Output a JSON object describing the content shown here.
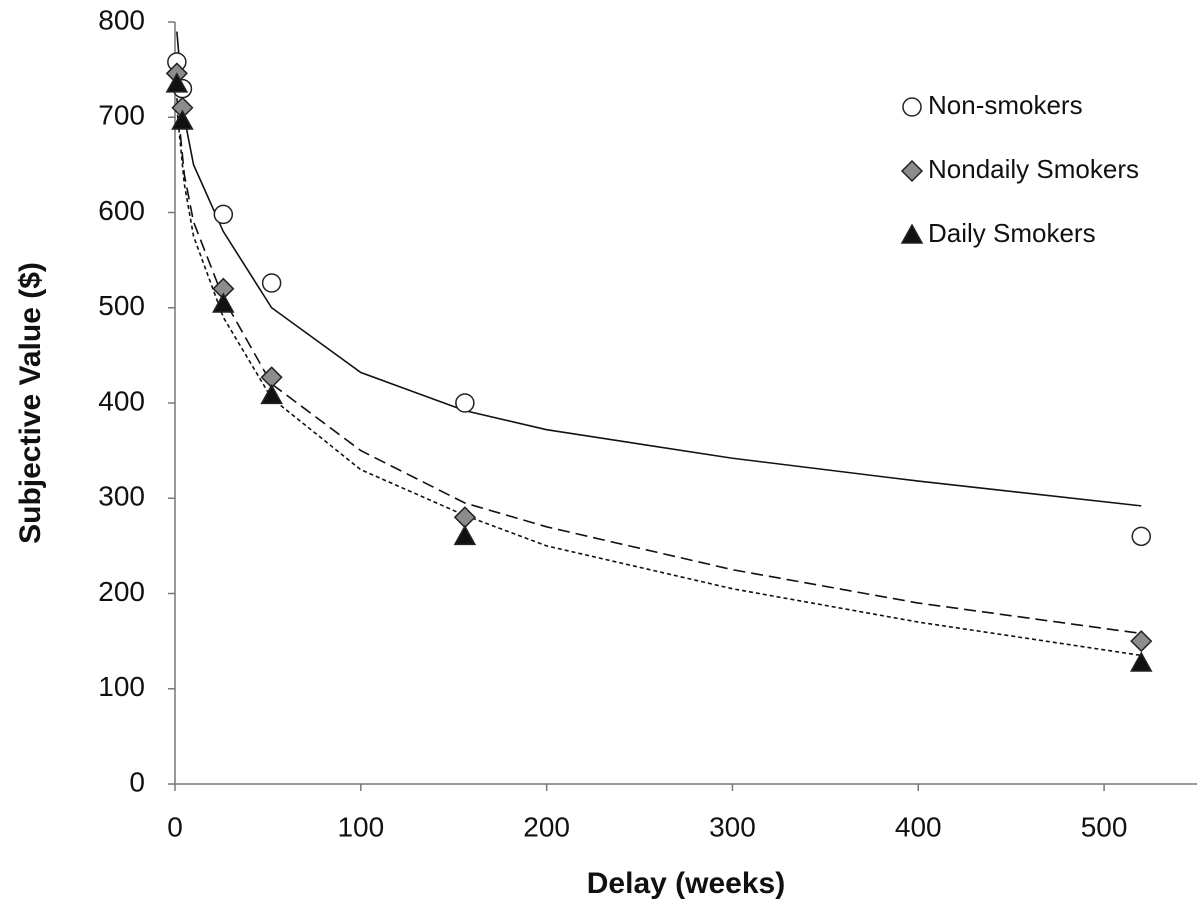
{
  "chart_data": {
    "type": "scatter",
    "xlabel": "Delay (weeks)",
    "ylabel": "Subjective Value ($)",
    "xlim": [
      0,
      550
    ],
    "xticks": [
      0,
      100,
      200,
      300,
      400,
      500
    ],
    "ylim": [
      0,
      800
    ],
    "yticks": [
      0,
      100,
      200,
      300,
      400,
      500,
      600,
      700,
      800
    ],
    "legend": "upper right",
    "x": [
      1,
      4,
      26,
      52,
      156,
      520
    ],
    "trend_x": [
      1,
      5,
      10,
      26,
      52,
      100,
      156,
      200,
      300,
      400,
      520
    ],
    "series": [
      {
        "name": "Non-smokers",
        "marker": "circle",
        "color": "#ffffff",
        "line_style": "solid",
        "values": [
          758,
          730,
          598,
          526,
          400,
          260
        ],
        "trend_values": [
          790,
          700,
          650,
          580,
          500,
          432,
          392,
          372,
          342,
          318,
          292
        ]
      },
      {
        "name": "Nondaily Smokers",
        "marker": "diamond",
        "color": "#8c8c8c",
        "line_style": "dashed",
        "values": [
          746,
          710,
          520,
          427,
          280,
          150
        ],
        "trend_values": [
          720,
          640,
          590,
          510,
          420,
          350,
          295,
          270,
          225,
          190,
          158
        ]
      },
      {
        "name": "Daily Smokers",
        "marker": "triangle",
        "color": "#111111",
        "line_style": "dotted",
        "values": [
          735,
          696,
          504,
          408,
          260,
          127
        ],
        "trend_values": [
          710,
          630,
          575,
          490,
          405,
          330,
          282,
          250,
          205,
          170,
          135
        ]
      }
    ]
  }
}
